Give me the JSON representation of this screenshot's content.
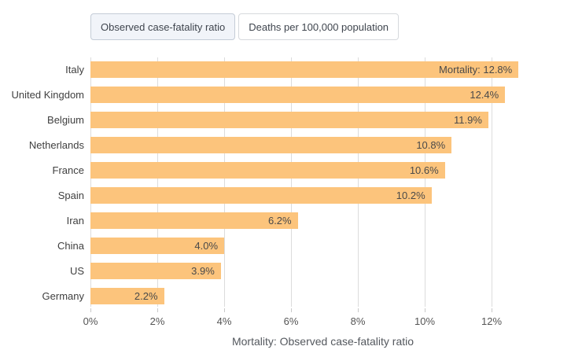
{
  "toggle": {
    "options": [
      {
        "label": "Observed case-fatality ratio",
        "selected": true
      },
      {
        "label": "Deaths per 100,000 population",
        "selected": false
      }
    ]
  },
  "chart_data": {
    "type": "bar",
    "orientation": "horizontal",
    "title": "",
    "categories": [
      "Italy",
      "United Kingdom",
      "Belgium",
      "Netherlands",
      "France",
      "Spain",
      "Iran",
      "China",
      "US",
      "Germany"
    ],
    "values": [
      12.8,
      12.4,
      11.9,
      10.8,
      10.6,
      10.2,
      6.2,
      4.0,
      3.9,
      2.2
    ],
    "bar_labels": [
      "Mortality: 12.8%",
      "12.4%",
      "11.9%",
      "10.8%",
      "10.6%",
      "10.2%",
      "6.2%",
      "4.0%",
      "3.9%",
      "2.2%"
    ],
    "xlabel": "Mortality: Observed case-fatality ratio",
    "ylabel": "",
    "x_ticks": [
      {
        "value": 0,
        "label": "0%"
      },
      {
        "value": 2,
        "label": "2%"
      },
      {
        "value": 4,
        "label": "4%"
      },
      {
        "value": 6,
        "label": "6%"
      },
      {
        "value": 8,
        "label": "8%"
      },
      {
        "value": 10,
        "label": "10%"
      },
      {
        "value": 12,
        "label": "12%"
      }
    ],
    "xlim": [
      0,
      13.9
    ],
    "grid": true,
    "legend_position": "none",
    "colors": {
      "bar": "#FCC47C",
      "gridline": "#DCDCDC",
      "tick_mark": "#C9C9C9",
      "tick_label": "#555555",
      "bar_value_text": "#4A4A4A",
      "category_label": "#404040",
      "axis_title": "#54585E"
    }
  }
}
